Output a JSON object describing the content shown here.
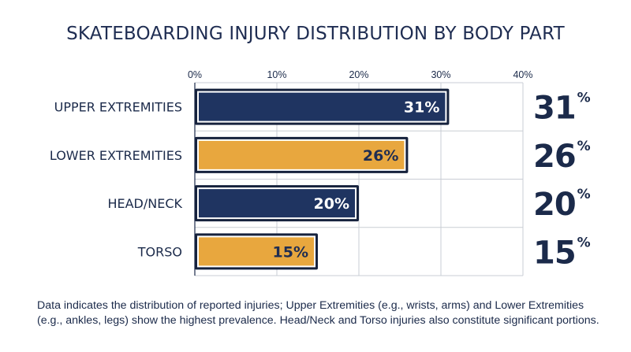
{
  "title": "SKATEBOARDING INJURY DISTRIBUTION BY BODY PART",
  "chart_data": {
    "type": "bar",
    "orientation": "horizontal",
    "categories": [
      "UPPER EXTREMITIES",
      "LOWER EXTREMITIES",
      "HEAD/NECK",
      "TORSO"
    ],
    "values": [
      31,
      26,
      20,
      15
    ],
    "data_labels": [
      "31%",
      "26%",
      "20%",
      "15%"
    ],
    "side_values": [
      "31",
      "26",
      "20",
      "15"
    ],
    "side_unit": "%",
    "xlim": [
      0,
      40
    ],
    "x_ticks": [
      "0%",
      "10%",
      "20%",
      "30%",
      "40%"
    ],
    "bar_colors": [
      "#1f3461",
      "#e8a73e",
      "#1f3461",
      "#e8a73e"
    ],
    "label_colors": [
      "#ffffff",
      "#1f2d52",
      "#ffffff",
      "#1f2d52"
    ],
    "grid": true,
    "xlabel": "",
    "ylabel": ""
  },
  "caption": "Data indicates the distribution of reported injuries; Upper Extremities (e.g., wrists, arms) and Lower Extremities (e.g., ankles, legs) show the highest prevalence. Head/Neck and Torso injuries also constitute significant portions."
}
